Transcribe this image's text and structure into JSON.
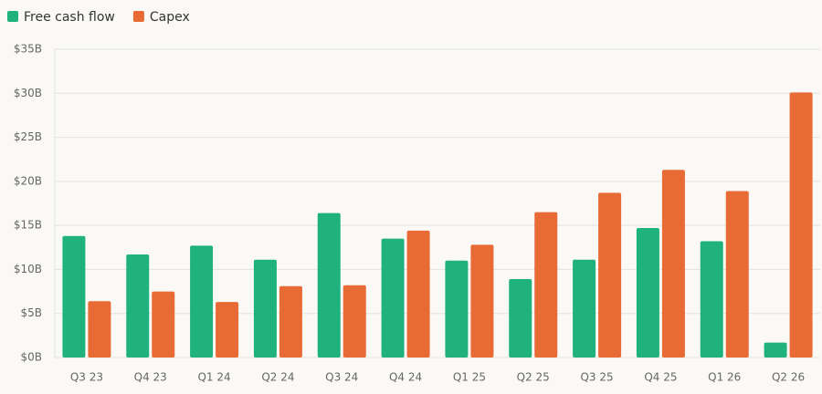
{
  "chart_data": {
    "type": "bar",
    "categories": [
      "Q3 23",
      "Q4 23",
      "Q1 24",
      "Q2 24",
      "Q3 24",
      "Q4 24",
      "Q1 25",
      "Q2 25",
      "Q3 25",
      "Q4 25",
      "Q1 26",
      "Q2 26"
    ],
    "series": [
      {
        "name": "Free cash flow",
        "color": "#1fb27e",
        "values": [
          13.8,
          11.7,
          12.7,
          11.1,
          16.4,
          13.5,
          11.0,
          8.9,
          11.1,
          14.7,
          13.2,
          1.7
        ]
      },
      {
        "name": "Capex",
        "color": "#e86a35",
        "values": [
          6.4,
          7.5,
          6.3,
          8.1,
          8.2,
          14.4,
          12.8,
          16.5,
          18.7,
          21.3,
          18.9,
          30.1
        ]
      }
    ],
    "ylim": [
      0,
      35
    ],
    "yticks": [
      {
        "value": 0,
        "label": "$0B"
      },
      {
        "value": 5,
        "label": "$5B"
      },
      {
        "value": 10,
        "label": "$10B"
      },
      {
        "value": 15,
        "label": "$15B"
      },
      {
        "value": 20,
        "label": "$20B"
      },
      {
        "value": 25,
        "label": "$25B"
      },
      {
        "value": 30,
        "label": "$30B"
      },
      {
        "value": 35,
        "label": "$35B"
      }
    ],
    "grid": true
  }
}
